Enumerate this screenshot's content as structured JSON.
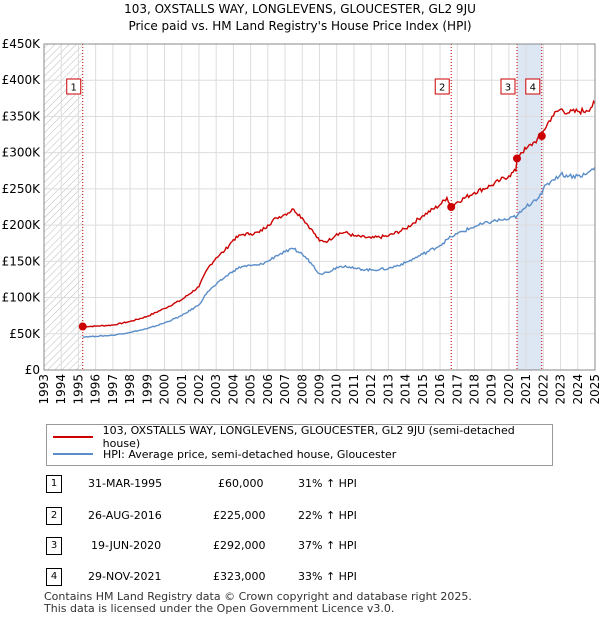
{
  "title_line1": "103, OXSTALLS WAY, LONGLEVENS, GLOUCESTER, GL2 9JU",
  "title_line2": "Price paid vs. HM Land Registry's House Price Index (HPI)",
  "chart_data": {
    "type": "line",
    "title": "103, OXSTALLS WAY, LONGLEVENS, GLOUCESTER, GL2 9JU",
    "subtitle": "Price paid vs. HM Land Registry's House Price Index (HPI)",
    "xlim": [
      1993,
      2025
    ],
    "ylim": [
      0,
      450000
    ],
    "x_ticks": [
      "1993",
      "1994",
      "1995",
      "1996",
      "1997",
      "1998",
      "1999",
      "2000",
      "2001",
      "2002",
      "2003",
      "2004",
      "2005",
      "2006",
      "2007",
      "2008",
      "2009",
      "2010",
      "2011",
      "2012",
      "2013",
      "2014",
      "2015",
      "2016",
      "2017",
      "2018",
      "2019",
      "2020",
      "2021",
      "2022",
      "2023",
      "2024",
      "2025"
    ],
    "y_ticks": [
      {
        "value": 0,
        "label": "£0"
      },
      {
        "value": 50000,
        "label": "£50K"
      },
      {
        "value": 100000,
        "label": "£100K"
      },
      {
        "value": 150000,
        "label": "£150K"
      },
      {
        "value": 200000,
        "label": "£200K"
      },
      {
        "value": 250000,
        "label": "£250K"
      },
      {
        "value": 300000,
        "label": "£300K"
      },
      {
        "value": 350000,
        "label": "£350K"
      },
      {
        "value": 400000,
        "label": "£400K"
      },
      {
        "value": 450000,
        "label": "£450K"
      }
    ],
    "series": [
      {
        "name": "103, OXSTALLS WAY, LONGLEVENS, GLOUCESTER, GL2 9JU (semi-detached house)",
        "color": "#cc0000",
        "points": [
          [
            1995.25,
            60000
          ],
          [
            1996.0,
            60500
          ],
          [
            1997.0,
            62000
          ],
          [
            1998.0,
            67000
          ],
          [
            1999.0,
            74000
          ],
          [
            2000.0,
            85000
          ],
          [
            2001.0,
            97000
          ],
          [
            2002.0,
            115000
          ],
          [
            2002.5,
            140000
          ],
          [
            2003.0,
            155000
          ],
          [
            2003.5,
            165000
          ],
          [
            2004.0,
            180000
          ],
          [
            2004.5,
            187000
          ],
          [
            2005.0,
            188000
          ],
          [
            2005.5,
            190000
          ],
          [
            2006.0,
            200000
          ],
          [
            2006.5,
            210000
          ],
          [
            2007.0,
            215000
          ],
          [
            2007.5,
            222000
          ],
          [
            2008.0,
            210000
          ],
          [
            2008.5,
            195000
          ],
          [
            2009.0,
            178000
          ],
          [
            2009.5,
            178000
          ],
          [
            2010.0,
            188000
          ],
          [
            2010.5,
            190000
          ],
          [
            2011.0,
            185000
          ],
          [
            2012.0,
            182000
          ],
          [
            2013.0,
            185000
          ],
          [
            2014.0,
            195000
          ],
          [
            2015.0,
            213000
          ],
          [
            2016.0,
            228000
          ],
          [
            2016.4,
            238000
          ],
          [
            2016.65,
            225000
          ],
          [
            2017.0,
            232000
          ],
          [
            2018.0,
            245000
          ],
          [
            2019.0,
            255000
          ],
          [
            2019.5,
            262000
          ],
          [
            2020.0,
            268000
          ],
          [
            2020.4,
            275000
          ],
          [
            2020.47,
            292000
          ],
          [
            2020.7,
            300000
          ],
          [
            2021.0,
            305000
          ],
          [
            2021.5,
            315000
          ],
          [
            2021.91,
            323000
          ],
          [
            2022.0,
            330000
          ],
          [
            2022.5,
            350000
          ],
          [
            2023.0,
            360000
          ],
          [
            2023.5,
            355000
          ],
          [
            2024.0,
            357000
          ],
          [
            2024.5,
            358000
          ],
          [
            2025.0,
            368000
          ]
        ]
      },
      {
        "name": "HPI: Average price, semi-detached house, Gloucester",
        "color": "#5b8ec9",
        "points": [
          [
            1995.25,
            45800
          ],
          [
            1996.0,
            46500
          ],
          [
            1997.0,
            48000
          ],
          [
            1998.0,
            52000
          ],
          [
            1999.0,
            57000
          ],
          [
            2000.0,
            65000
          ],
          [
            2001.0,
            75000
          ],
          [
            2002.0,
            90000
          ],
          [
            2002.5,
            108000
          ],
          [
            2003.0,
            118000
          ],
          [
            2003.5,
            128000
          ],
          [
            2004.0,
            137000
          ],
          [
            2004.5,
            143000
          ],
          [
            2005.0,
            144000
          ],
          [
            2005.5,
            145000
          ],
          [
            2006.0,
            150000
          ],
          [
            2006.5,
            158000
          ],
          [
            2007.0,
            163000
          ],
          [
            2007.5,
            167000
          ],
          [
            2008.0,
            160000
          ],
          [
            2008.5,
            148000
          ],
          [
            2009.0,
            133000
          ],
          [
            2009.5,
            135000
          ],
          [
            2010.0,
            142000
          ],
          [
            2010.5,
            144000
          ],
          [
            2011.0,
            140000
          ],
          [
            2012.0,
            138000
          ],
          [
            2013.0,
            140000
          ],
          [
            2014.0,
            148000
          ],
          [
            2015.0,
            160000
          ],
          [
            2016.0,
            172000
          ],
          [
            2016.65,
            184000
          ],
          [
            2017.0,
            188000
          ],
          [
            2018.0,
            198000
          ],
          [
            2019.0,
            205000
          ],
          [
            2019.5,
            207000
          ],
          [
            2020.0,
            208000
          ],
          [
            2020.47,
            213000
          ],
          [
            2020.7,
            218000
          ],
          [
            2021.0,
            225000
          ],
          [
            2021.5,
            235000
          ],
          [
            2021.91,
            243000
          ],
          [
            2022.0,
            250000
          ],
          [
            2022.5,
            262000
          ],
          [
            2023.0,
            270000
          ],
          [
            2023.5,
            268000
          ],
          [
            2024.0,
            268000
          ],
          [
            2024.5,
            270000
          ],
          [
            2025.0,
            280000
          ]
        ]
      }
    ],
    "sales": [
      {
        "n": "1",
        "x": 1995.25,
        "y": 60000
      },
      {
        "n": "2",
        "x": 2016.65,
        "y": 225000
      },
      {
        "n": "3",
        "x": 2020.47,
        "y": 292000
      },
      {
        "n": "4",
        "x": 2021.91,
        "y": 323000
      }
    ],
    "hatched_ranges": [
      [
        1993,
        1995.25
      ],
      [
        2025,
        2025.5
      ]
    ],
    "shaded_ranges": [
      [
        2020.47,
        2021.91
      ]
    ]
  },
  "legend": {
    "property": "103, OXSTALLS WAY, LONGLEVENS, GLOUCESTER, GL2 9JU (semi-detached house)",
    "hpi": "HPI: Average price, semi-detached house, Gloucester"
  },
  "transactions": [
    {
      "num": "1",
      "date": "31-MAR-1995",
      "price": "£60,000",
      "hpi": "31% ↑ HPI"
    },
    {
      "num": "2",
      "date": "26-AUG-2016",
      "price": "£225,000",
      "hpi": "22% ↑ HPI"
    },
    {
      "num": "3",
      "date": "19-JUN-2020",
      "price": "£292,000",
      "hpi": "37% ↑ HPI"
    },
    {
      "num": "4",
      "date": "29-NOV-2021",
      "price": "£323,000",
      "hpi": "33% ↑ HPI"
    }
  ],
  "footer": {
    "line1": "Contains HM Land Registry data © Crown copyright and database right 2025.",
    "line2": "This data is licensed under the Open Government Licence v3.0."
  },
  "colors": {
    "property": "#cc0000",
    "hpi": "#5b8ec9",
    "shade": "#dde6f3",
    "grid": "#dddddd"
  }
}
